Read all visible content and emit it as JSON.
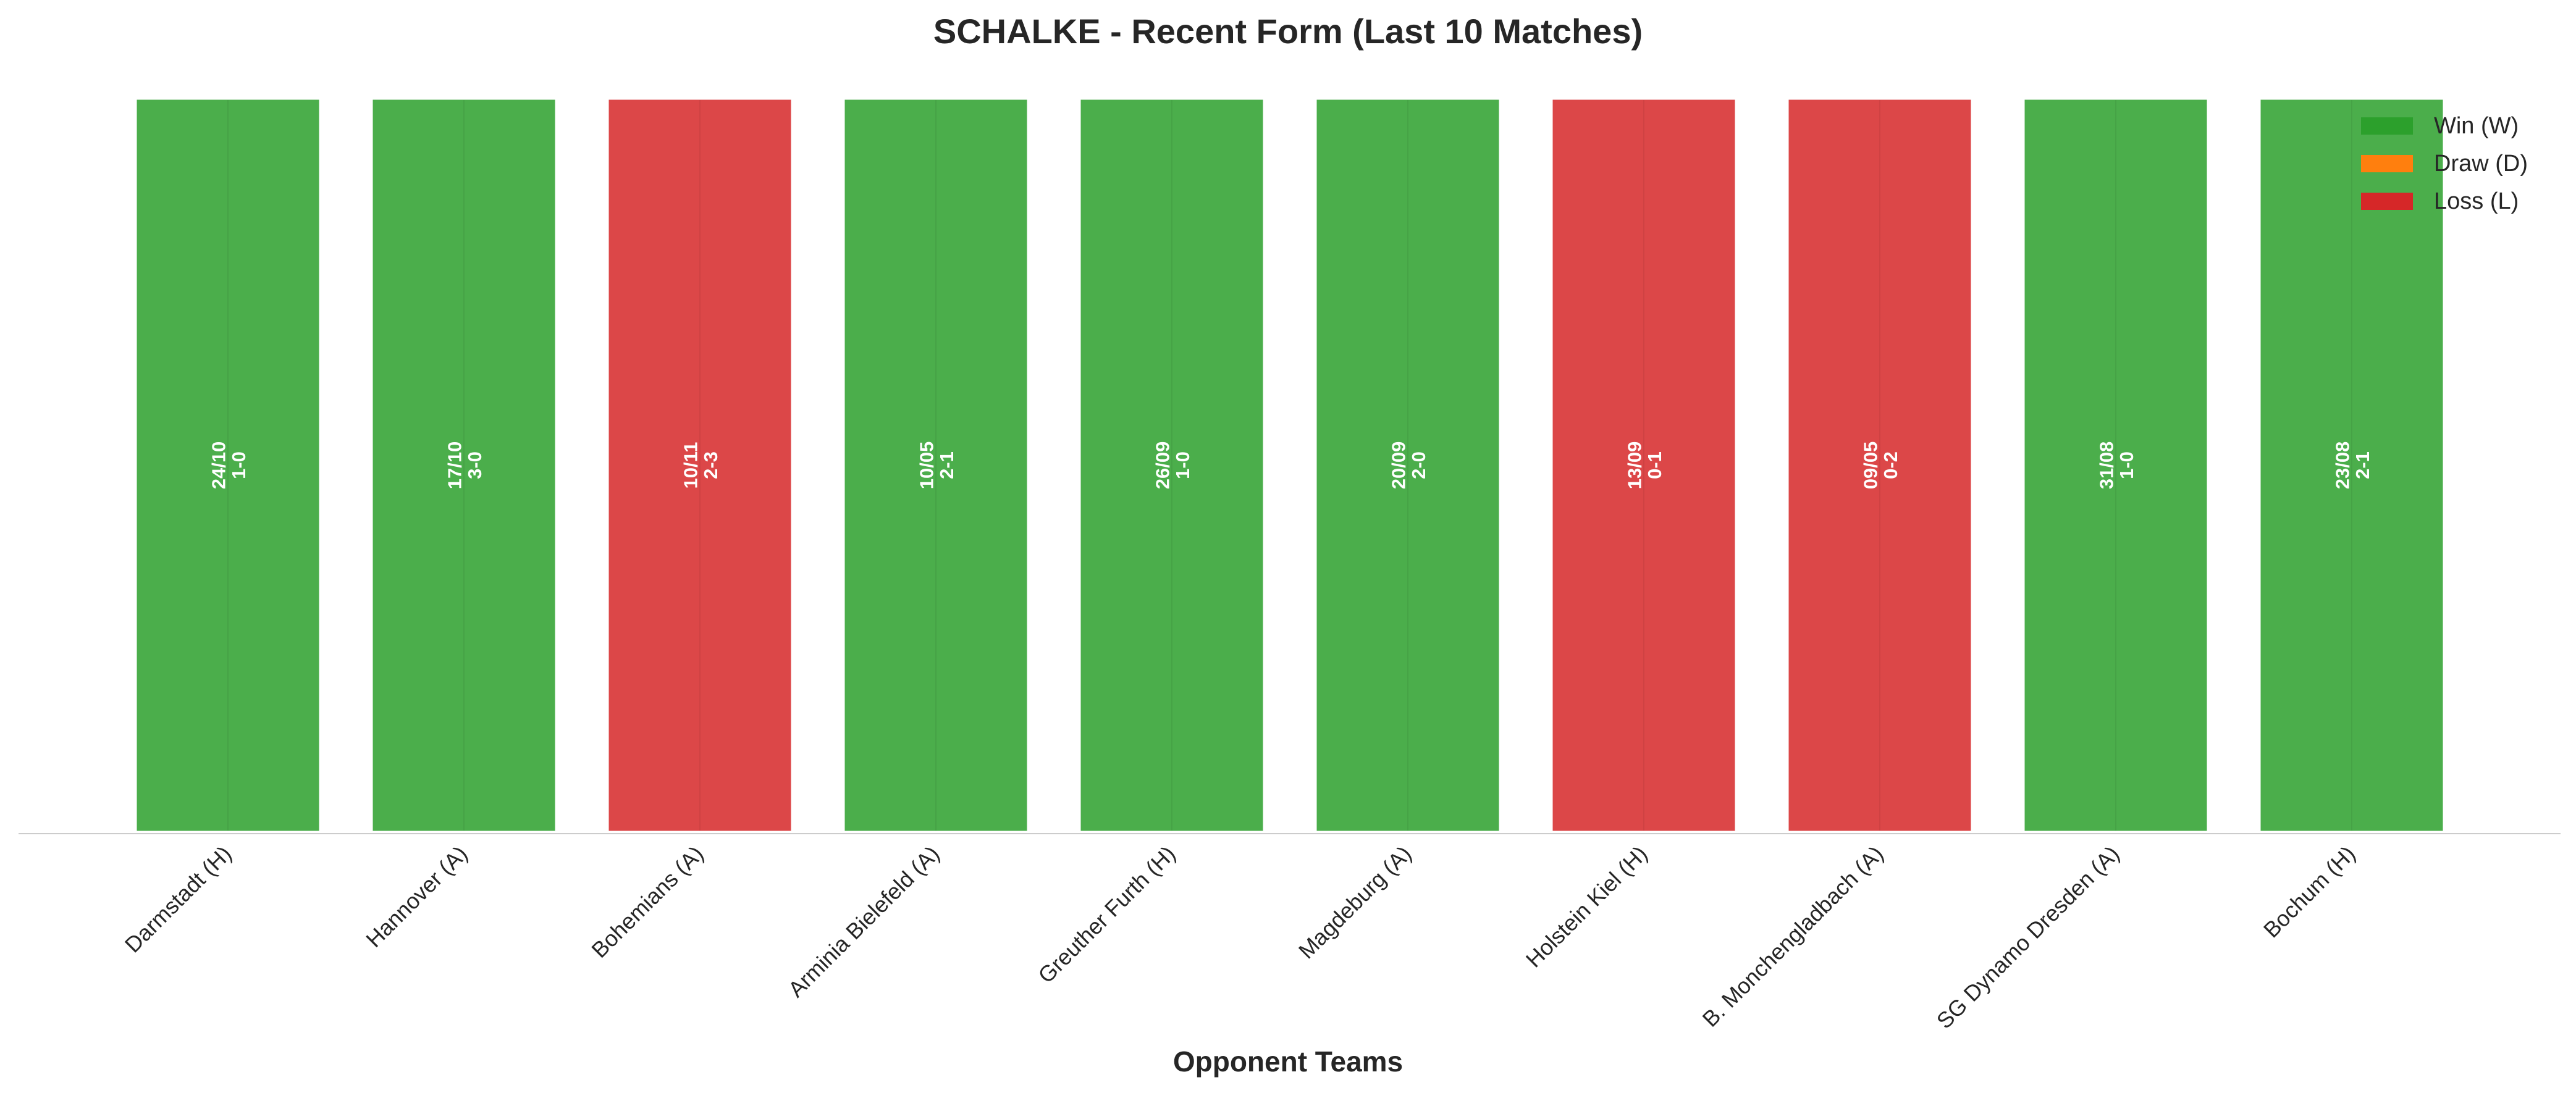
{
  "chart_data": {
    "type": "bar",
    "title": "SCHALKE - Recent Form (Last 10 Matches)",
    "xlabel": "Opponent Teams",
    "ylabel": "",
    "grid": false,
    "legend_position": "top-right",
    "categories": [
      "Darmstadt (H)",
      "Hannover (A)",
      "Bohemians (A)",
      "Arminia Bielefeld (A)",
      "Greuther Furth (H)",
      "Magdeburg (A)",
      "Holstein Kiel (H)",
      "B. Monchengladbach (A)",
      "SG Dynamo Dresden (A)",
      "Bochum (H)"
    ],
    "values": [
      1,
      1,
      1,
      1,
      1,
      1,
      1,
      1,
      1,
      1
    ],
    "ylim": [
      0,
      1
    ],
    "results": [
      "W",
      "W",
      "L",
      "W",
      "W",
      "W",
      "L",
      "L",
      "W",
      "W"
    ],
    "dates": [
      "24/10",
      "17/10",
      "10/11",
      "10/05",
      "26/09",
      "20/09",
      "13/09",
      "09/05",
      "31/08",
      "23/08"
    ],
    "scores": [
      "1-0",
      "3-0",
      "2-3",
      "2-1",
      "1-0",
      "2-0",
      "0-1",
      "0-2",
      "1-0",
      "2-1"
    ],
    "legend": [
      {
        "key": "W",
        "label": "Win (W)",
        "color": "#2ca02c"
      },
      {
        "key": "D",
        "label": "Draw (D)",
        "color": "#ff7f0e"
      },
      {
        "key": "L",
        "label": "Loss (L)",
        "color": "#d62728"
      }
    ],
    "bar_opacity": 0.85
  }
}
